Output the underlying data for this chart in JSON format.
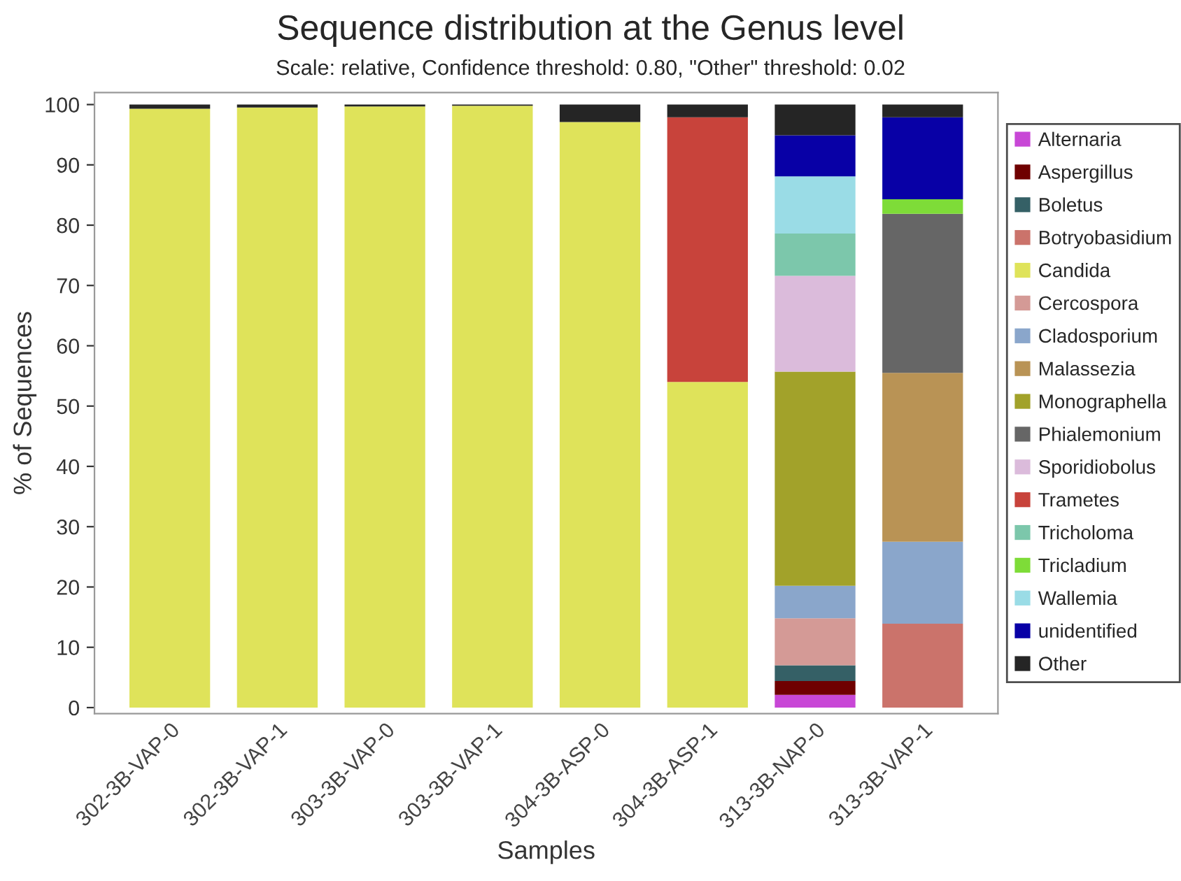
{
  "chart_data": {
    "type": "bar",
    "stacked": true,
    "title": "Sequence distribution at the Genus level",
    "subtitle": "Scale: relative, Confidence threshold: 0.80, \"Other\" threshold: 0.02",
    "xlabel": "Samples",
    "ylabel": "% of Sequences",
    "categories": [
      "302-3B-VAP-0",
      "302-3B-VAP-1",
      "303-3B-VAP-0",
      "303-3B-VAP-1",
      "304-3B-ASP-0",
      "304-3B-ASP-1",
      "313-3B-NAP-0",
      "313-3B-VAP-1"
    ],
    "series": [
      {
        "name": "Alternaria",
        "color": "#c847d6",
        "values": [
          0,
          0,
          0,
          0,
          0,
          0,
          2.1,
          0
        ]
      },
      {
        "name": "Aspergillus",
        "color": "#6f0000",
        "values": [
          0,
          0,
          0,
          0,
          0,
          0,
          2.3,
          0
        ]
      },
      {
        "name": "Boletus",
        "color": "#356066",
        "values": [
          0,
          0,
          0,
          0,
          0,
          0,
          2.6,
          0
        ]
      },
      {
        "name": "Botryobasidium",
        "color": "#cb736b",
        "values": [
          0,
          0,
          0,
          0,
          0,
          0,
          0,
          13.9
        ]
      },
      {
        "name": "Candida",
        "color": "#dfe35a",
        "values": [
          99.3,
          99.5,
          99.7,
          99.8,
          97.1,
          54.0,
          0,
          0
        ]
      },
      {
        "name": "Cercospora",
        "color": "#d49a96",
        "values": [
          0,
          0,
          0,
          0,
          0,
          0,
          7.8,
          0
        ]
      },
      {
        "name": "Cladosporium",
        "color": "#8aa6cb",
        "values": [
          0,
          0,
          0,
          0,
          0,
          0,
          5.4,
          13.6
        ]
      },
      {
        "name": "Malassezia",
        "color": "#b99355",
        "values": [
          0,
          0,
          0,
          0,
          0,
          0,
          0,
          28.0
        ]
      },
      {
        "name": "Monographella",
        "color": "#a2a22a",
        "values": [
          0,
          0,
          0,
          0,
          0,
          0,
          35.5,
          0
        ]
      },
      {
        "name": "Phialemonium",
        "color": "#666666",
        "values": [
          0,
          0,
          0,
          0,
          0,
          0,
          0,
          26.4
        ]
      },
      {
        "name": "Sporidiobolus",
        "color": "#dbbbdb",
        "values": [
          0,
          0,
          0,
          0,
          0,
          0,
          15.9,
          0
        ]
      },
      {
        "name": "Trametes",
        "color": "#c8433b",
        "values": [
          0,
          0,
          0,
          0,
          0,
          43.9,
          0,
          0
        ]
      },
      {
        "name": "Tricholoma",
        "color": "#7cc7ab",
        "values": [
          0,
          0,
          0,
          0,
          0,
          0,
          7.0,
          0
        ]
      },
      {
        "name": "Tricladium",
        "color": "#7edc38",
        "values": [
          0,
          0,
          0,
          0,
          0,
          0,
          0,
          2.4
        ]
      },
      {
        "name": "Wallemia",
        "color": "#9adce6",
        "values": [
          0,
          0,
          0,
          0,
          0,
          0,
          9.5,
          0
        ]
      },
      {
        "name": "unidentified",
        "color": "#0800a6",
        "values": [
          0,
          0,
          0,
          0,
          0,
          0,
          6.8,
          13.6
        ]
      },
      {
        "name": "Other",
        "color": "#252525",
        "values": [
          0.7,
          0.5,
          0.3,
          0.2,
          2.9,
          2.1,
          5.1,
          2.1
        ]
      }
    ],
    "ylim": [
      -1,
      102
    ],
    "yticks": [
      0,
      10,
      20,
      30,
      40,
      50,
      60,
      70,
      80,
      90,
      100
    ],
    "grid": false,
    "legend": "right"
  }
}
